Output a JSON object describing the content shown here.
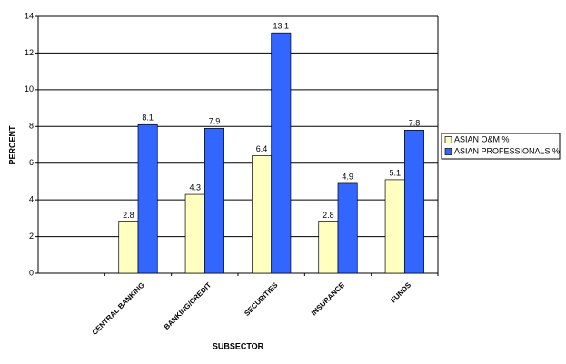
{
  "chart_data": {
    "type": "bar",
    "categories": [
      null,
      "CENTRAL BANKING",
      "BANKING/CREDIT",
      "SECURITIES",
      "INSURANCE",
      "FUNDS"
    ],
    "series": [
      {
        "name": "ASIAN O&M %",
        "color": "#ffffc0",
        "values": [
          null,
          2.8,
          4.3,
          6.4,
          2.8,
          5.1
        ]
      },
      {
        "name": "ASIAN PROFESSIONALS %",
        "color": "#3366ff",
        "values": [
          null,
          8.1,
          7.9,
          13.1,
          4.9,
          7.8
        ]
      }
    ],
    "y_label": "PERCENT",
    "x_label": "SUBSECTOR",
    "ylim": [
      0,
      14
    ],
    "yticks": [
      0,
      2,
      4,
      6,
      8,
      10,
      12,
      14
    ],
    "grid": true,
    "legend": "right"
  }
}
